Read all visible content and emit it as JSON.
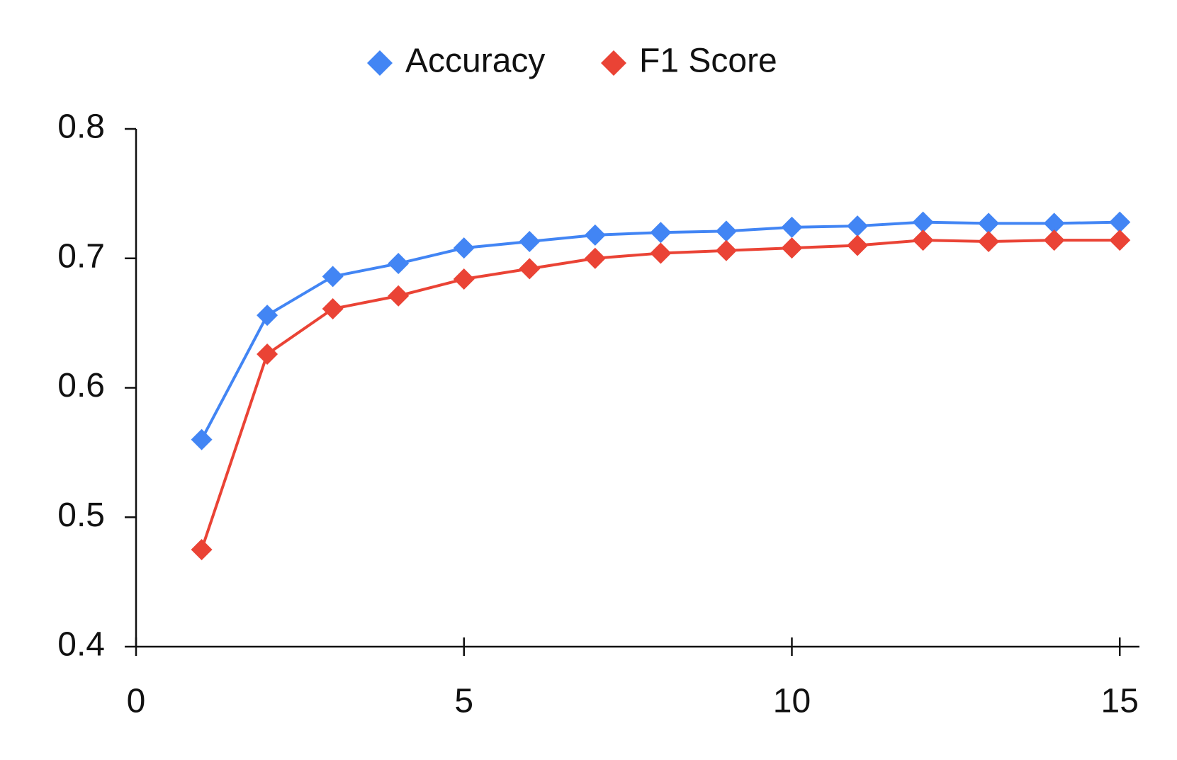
{
  "chart_data": {
    "type": "line",
    "x": [
      1,
      2,
      3,
      4,
      5,
      6,
      7,
      8,
      9,
      10,
      11,
      12,
      13,
      14,
      15
    ],
    "series": [
      {
        "name": "Accuracy",
        "color": "#4285f4",
        "values": [
          0.56,
          0.656,
          0.686,
          0.696,
          0.708,
          0.713,
          0.718,
          0.72,
          0.721,
          0.724,
          0.725,
          0.728,
          0.727,
          0.727,
          0.728
        ]
      },
      {
        "name": "F1 Score",
        "color": "#ea4335",
        "values": [
          0.475,
          0.626,
          0.661,
          0.671,
          0.684,
          0.692,
          0.7,
          0.704,
          0.706,
          0.708,
          0.71,
          0.714,
          0.713,
          0.714,
          0.714
        ]
      }
    ],
    "xlim": [
      0,
      15.3
    ],
    "xticks": [
      0,
      5,
      10,
      15
    ],
    "ylim": [
      0.4,
      0.8
    ],
    "yticks": [
      0.4,
      0.5,
      0.6,
      0.7,
      0.8
    ],
    "legend": "top",
    "grid": false
  }
}
